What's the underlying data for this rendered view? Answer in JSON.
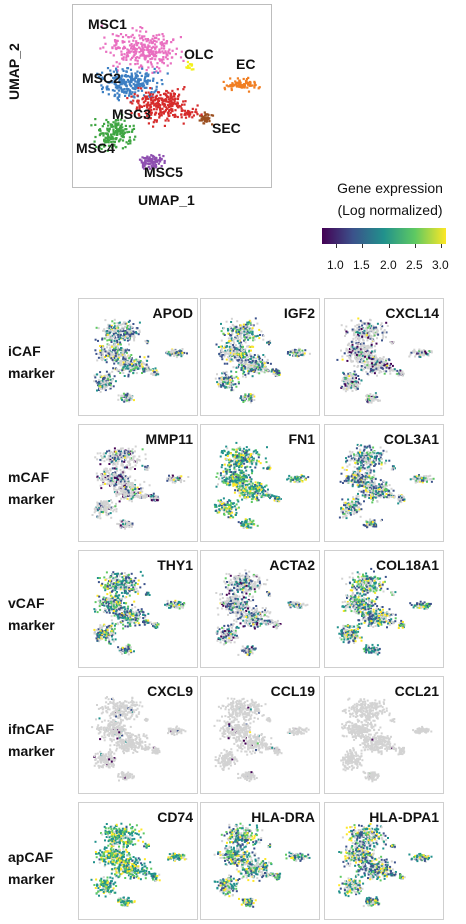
{
  "umap": {
    "xlabel": "UMAP_1",
    "ylabel": "UMAP_2",
    "clusters": [
      {
        "name": "MSC1",
        "color": "#e96fc0"
      },
      {
        "name": "MSC2",
        "color": "#3d7fc3"
      },
      {
        "name": "OLC",
        "color": "#f3f01d"
      },
      {
        "name": "EC",
        "color": "#f17e22"
      },
      {
        "name": "MSC3",
        "color": "#d62b2b"
      },
      {
        "name": "SEC",
        "color": "#9b4f20"
      },
      {
        "name": "MSC4",
        "color": "#3ea541"
      },
      {
        "name": "MSC5",
        "color": "#8e4fb0"
      }
    ]
  },
  "legend": {
    "title_line1": "Gene expression",
    "title_line2": "(Log normalized)",
    "ticks": [
      "1.0",
      "1.5",
      "2.0",
      "2.5",
      "3.0"
    ],
    "colors": [
      "#440154",
      "#3b528b",
      "#21918c",
      "#5ec962",
      "#fde725"
    ]
  },
  "rows": [
    {
      "label_line1": "iCAF",
      "label_line2": "marker",
      "genes": [
        "APOD",
        "IGF2",
        "CXCL14"
      ],
      "levels": [
        0.55,
        0.6,
        0.35
      ]
    },
    {
      "label_line1": "mCAF",
      "label_line2": "marker",
      "genes": [
        "MMP11",
        "FN1",
        "COL3A1"
      ],
      "levels": [
        0.3,
        0.85,
        0.6
      ]
    },
    {
      "label_line1": "vCAF",
      "label_line2": "marker",
      "genes": [
        "THY1",
        "ACTA2",
        "COL18A1"
      ],
      "levels": [
        0.7,
        0.4,
        0.7
      ]
    },
    {
      "label_line1": "ifnCAF",
      "label_line2": "marker",
      "genes": [
        "CXCL9",
        "CCL19",
        "CCL21"
      ],
      "levels": [
        0.04,
        0.03,
        0.01
      ]
    },
    {
      "label_line1": "apCAF",
      "label_line2": "marker",
      "genes": [
        "CD74",
        "HLA-DRA",
        "HLA-DPA1"
      ],
      "levels": [
        0.9,
        0.75,
        0.7
      ]
    }
  ]
}
